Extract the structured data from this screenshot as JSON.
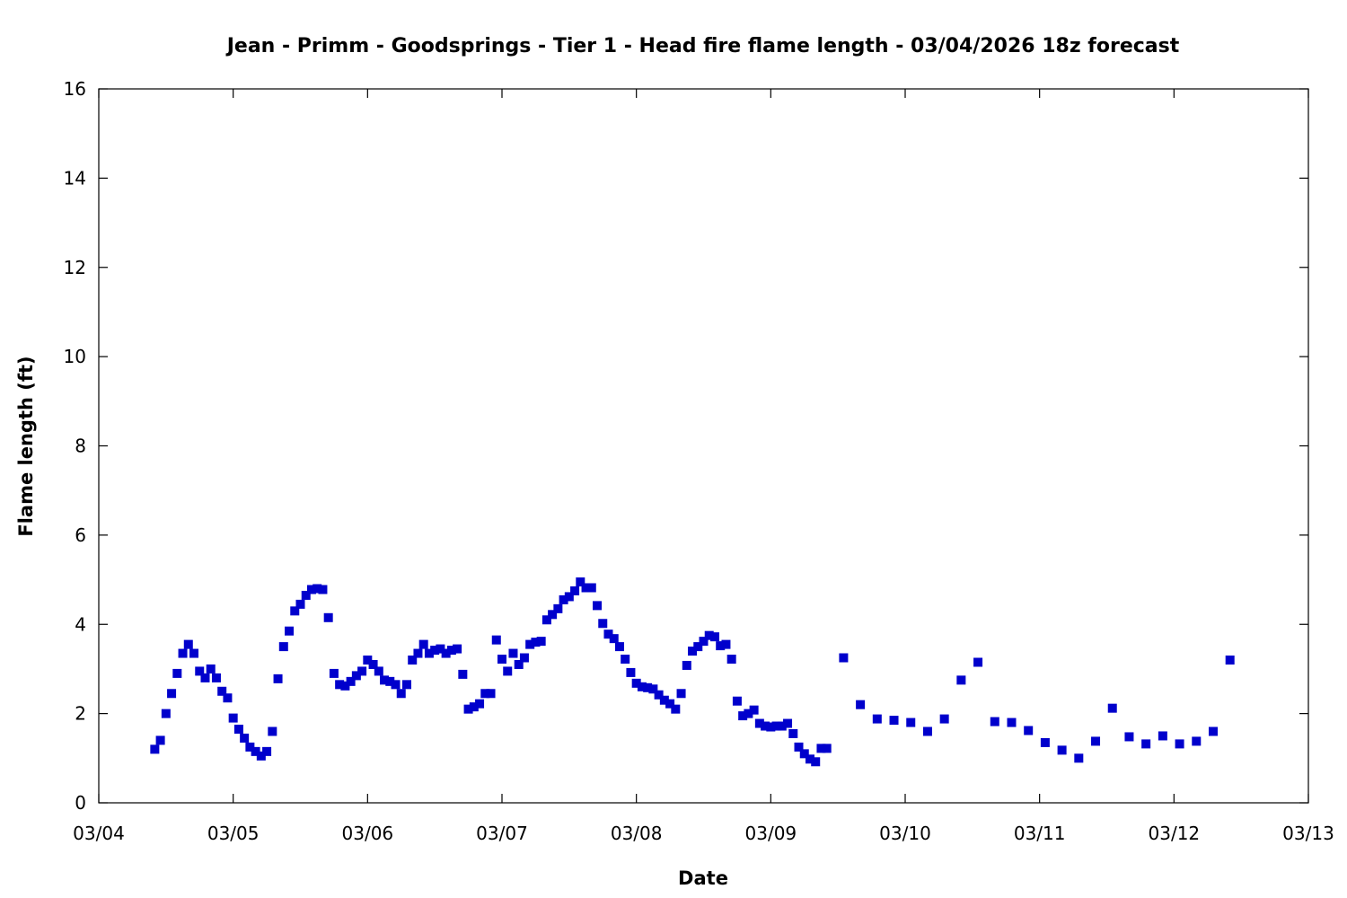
{
  "chart_data": {
    "type": "scatter",
    "title": "Jean - Primm - Goodsprings - Tier 1 - Head fire flame length - 03/04/2026 18z forecast",
    "xlabel": "Date",
    "ylabel": "Flame length (ft)",
    "xlim": [
      "2026-03-04 00:00",
      "2026-03-13 00:00"
    ],
    "ylim": [
      0,
      16
    ],
    "x_ticks": [
      "03/04",
      "03/05",
      "03/06",
      "03/07",
      "03/08",
      "03/09",
      "03/10",
      "03/11",
      "03/12",
      "03/13"
    ],
    "y_ticks": [
      0,
      2,
      4,
      6,
      8,
      10,
      12,
      14,
      16
    ],
    "grid": false,
    "legend": "none",
    "color": "#0000cc",
    "x": [
      "2026-03-04 10:00",
      "2026-03-04 11:00",
      "2026-03-04 12:00",
      "2026-03-04 13:00",
      "2026-03-04 14:00",
      "2026-03-04 15:00",
      "2026-03-04 16:00",
      "2026-03-04 17:00",
      "2026-03-04 18:00",
      "2026-03-04 19:00",
      "2026-03-04 20:00",
      "2026-03-04 21:00",
      "2026-03-04 22:00",
      "2026-03-04 23:00",
      "2026-03-05 00:00",
      "2026-03-05 01:00",
      "2026-03-05 02:00",
      "2026-03-05 03:00",
      "2026-03-05 04:00",
      "2026-03-05 05:00",
      "2026-03-05 06:00",
      "2026-03-05 07:00",
      "2026-03-05 08:00",
      "2026-03-05 09:00",
      "2026-03-05 10:00",
      "2026-03-05 11:00",
      "2026-03-05 12:00",
      "2026-03-05 13:00",
      "2026-03-05 14:00",
      "2026-03-05 15:00",
      "2026-03-05 16:00",
      "2026-03-05 17:00",
      "2026-03-05 18:00",
      "2026-03-05 19:00",
      "2026-03-05 20:00",
      "2026-03-05 21:00",
      "2026-03-05 22:00",
      "2026-03-05 23:00",
      "2026-03-06 00:00",
      "2026-03-06 01:00",
      "2026-03-06 02:00",
      "2026-03-06 03:00",
      "2026-03-06 04:00",
      "2026-03-06 05:00",
      "2026-03-06 06:00",
      "2026-03-06 07:00",
      "2026-03-06 08:00",
      "2026-03-06 09:00",
      "2026-03-06 10:00",
      "2026-03-06 11:00",
      "2026-03-06 12:00",
      "2026-03-06 13:00",
      "2026-03-06 14:00",
      "2026-03-06 15:00",
      "2026-03-06 16:00",
      "2026-03-06 17:00",
      "2026-03-06 18:00",
      "2026-03-06 19:00",
      "2026-03-06 20:00",
      "2026-03-06 21:00",
      "2026-03-06 22:00",
      "2026-03-06 23:00",
      "2026-03-07 00:00",
      "2026-03-07 01:00",
      "2026-03-07 02:00",
      "2026-03-07 03:00",
      "2026-03-07 04:00",
      "2026-03-07 05:00",
      "2026-03-07 06:00",
      "2026-03-07 07:00",
      "2026-03-07 08:00",
      "2026-03-07 09:00",
      "2026-03-07 10:00",
      "2026-03-07 11:00",
      "2026-03-07 12:00",
      "2026-03-07 13:00",
      "2026-03-07 14:00",
      "2026-03-07 15:00",
      "2026-03-07 16:00",
      "2026-03-07 17:00",
      "2026-03-07 18:00",
      "2026-03-07 19:00",
      "2026-03-07 20:00",
      "2026-03-07 21:00",
      "2026-03-07 22:00",
      "2026-03-07 23:00",
      "2026-03-08 00:00",
      "2026-03-08 01:00",
      "2026-03-08 02:00",
      "2026-03-08 03:00",
      "2026-03-08 04:00",
      "2026-03-08 05:00",
      "2026-03-08 06:00",
      "2026-03-08 07:00",
      "2026-03-08 08:00",
      "2026-03-08 09:00",
      "2026-03-08 10:00",
      "2026-03-08 11:00",
      "2026-03-08 12:00",
      "2026-03-08 13:00",
      "2026-03-08 14:00",
      "2026-03-08 15:00",
      "2026-03-08 16:00",
      "2026-03-08 17:00",
      "2026-03-08 18:00",
      "2026-03-08 19:00",
      "2026-03-08 20:00",
      "2026-03-08 21:00",
      "2026-03-08 22:00",
      "2026-03-08 23:00",
      "2026-03-09 00:00",
      "2026-03-09 01:00",
      "2026-03-09 02:00",
      "2026-03-09 03:00",
      "2026-03-09 04:00",
      "2026-03-09 05:00",
      "2026-03-09 06:00",
      "2026-03-09 07:00",
      "2026-03-09 08:00",
      "2026-03-09 09:00",
      "2026-03-09 10:00",
      "2026-03-09 13:00",
      "2026-03-09 16:00",
      "2026-03-09 19:00",
      "2026-03-09 22:00",
      "2026-03-10 01:00",
      "2026-03-10 04:00",
      "2026-03-10 07:00",
      "2026-03-10 10:00",
      "2026-03-10 13:00",
      "2026-03-10 16:00",
      "2026-03-10 19:00",
      "2026-03-10 22:00",
      "2026-03-11 01:00",
      "2026-03-11 04:00",
      "2026-03-11 07:00",
      "2026-03-11 10:00",
      "2026-03-11 13:00",
      "2026-03-11 16:00",
      "2026-03-11 19:00",
      "2026-03-11 22:00",
      "2026-03-12 01:00",
      "2026-03-12 04:00",
      "2026-03-12 07:00",
      "2026-03-12 10:00"
    ],
    "y": [
      1.2,
      1.4,
      2.0,
      2.45,
      2.9,
      3.35,
      3.55,
      3.35,
      2.95,
      2.8,
      3.0,
      2.8,
      2.5,
      2.35,
      1.9,
      1.65,
      1.45,
      1.25,
      1.15,
      1.05,
      1.15,
      1.6,
      2.78,
      3.5,
      3.85,
      4.3,
      4.45,
      4.65,
      4.78,
      4.8,
      4.78,
      4.15,
      2.9,
      2.65,
      2.62,
      2.72,
      2.85,
      2.95,
      3.2,
      3.1,
      2.95,
      2.75,
      2.72,
      2.65,
      2.45,
      2.65,
      3.2,
      3.35,
      3.55,
      3.35,
      3.42,
      3.45,
      3.35,
      3.42,
      3.45,
      2.88,
      2.1,
      2.15,
      2.22,
      2.45,
      2.45,
      3.65,
      3.22,
      2.95,
      3.35,
      3.1,
      3.25,
      3.55,
      3.6,
      3.62,
      4.1,
      4.22,
      4.35,
      4.55,
      4.62,
      4.75,
      4.95,
      4.82,
      4.82,
      4.42,
      4.02,
      3.78,
      3.68,
      3.5,
      3.22,
      2.92,
      2.68,
      2.6,
      2.58,
      2.55,
      2.42,
      2.3,
      2.22,
      2.1,
      2.45,
      3.08,
      3.4,
      3.5,
      3.62,
      3.75,
      3.72,
      3.52,
      3.55,
      3.22,
      2.28,
      1.95,
      2.0,
      2.08,
      1.78,
      1.72,
      1.7,
      1.72,
      1.72,
      1.78,
      1.55,
      1.25,
      1.1,
      0.98,
      0.92,
      1.22,
      1.22,
      3.25,
      2.2,
      1.88,
      1.85,
      1.8,
      1.6,
      1.88,
      2.75,
      3.15,
      1.82,
      1.8,
      1.62,
      1.35,
      1.18,
      1.0,
      1.38,
      2.12,
      1.48,
      1.32,
      1.5,
      1.32,
      1.38,
      1.6,
      3.2
    ]
  }
}
